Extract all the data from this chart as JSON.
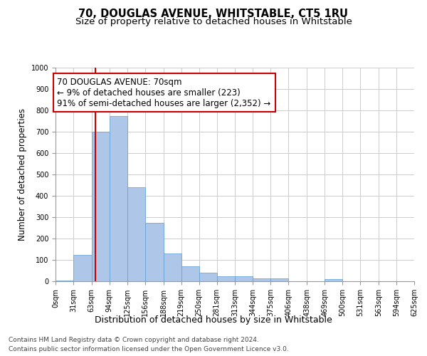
{
  "title": "70, DOUGLAS AVENUE, WHITSTABLE, CT5 1RU",
  "subtitle": "Size of property relative to detached houses in Whitstable",
  "xlabel": "Distribution of detached houses by size in Whitstable",
  "ylabel": "Number of detached properties",
  "bin_edges": [
    0,
    31,
    63,
    94,
    125,
    156,
    188,
    219,
    250,
    281,
    313,
    344,
    375,
    406,
    438,
    469,
    500,
    531,
    563,
    594,
    625
  ],
  "bar_heights": [
    5,
    125,
    700,
    775,
    440,
    275,
    130,
    70,
    40,
    25,
    25,
    12,
    12,
    0,
    0,
    10,
    0,
    0,
    0,
    0
  ],
  "bar_color": "#aec6e8",
  "bar_edgecolor": "#5a9fd4",
  "red_line_x": 70,
  "red_line_color": "#cc0000",
  "annotation_line1": "70 DOUGLAS AVENUE: 70sqm",
  "annotation_line2": "← 9% of detached houses are smaller (223)",
  "annotation_line3": "91% of semi-detached houses are larger (2,352) →",
  "annotation_box_color": "#ffffff",
  "annotation_box_edgecolor": "#cc0000",
  "ylim": [
    0,
    1000
  ],
  "yticks": [
    0,
    100,
    200,
    300,
    400,
    500,
    600,
    700,
    800,
    900,
    1000
  ],
  "grid_color": "#cccccc",
  "background_color": "#ffffff",
  "footer_line1": "Contains HM Land Registry data © Crown copyright and database right 2024.",
  "footer_line2": "Contains public sector information licensed under the Open Government Licence v3.0.",
  "title_fontsize": 10.5,
  "subtitle_fontsize": 9.5,
  "tick_label_fontsize": 7,
  "ylabel_fontsize": 8.5,
  "xlabel_fontsize": 9,
  "footer_fontsize": 6.5,
  "annotation_fontsize": 8.5
}
